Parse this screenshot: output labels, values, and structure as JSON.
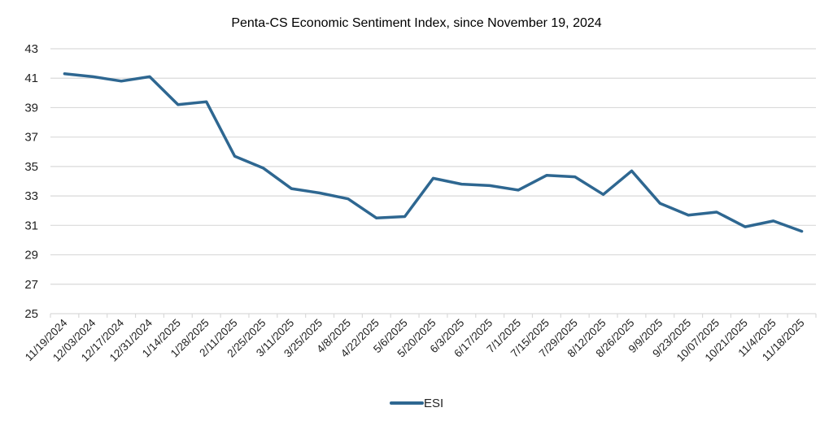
{
  "chart_data": {
    "type": "line",
    "title": "Penta-CS Economic Sentiment Index, since November 19, 2024",
    "xlabel": "",
    "ylabel": "",
    "ylim": [
      25,
      43
    ],
    "yticks": [
      "25",
      "27",
      "29",
      "31",
      "33",
      "35",
      "37",
      "39",
      "41",
      "43"
    ],
    "ytick_values": [
      25,
      27,
      29,
      31,
      33,
      35,
      37,
      39,
      41,
      43
    ],
    "grid": true,
    "legend_position": "bottom",
    "categories": [
      "11/19/2024",
      "12/03/2024",
      "12/17/2024",
      "12/31/2024",
      "1/14/2025",
      "1/28/2025",
      "2/11/2025",
      "2/25/2025",
      "3/11/2025",
      "3/25/2025",
      "4/8/2025",
      "4/22/2025",
      "5/6/2025",
      "5/20/2025",
      "6/3/2025",
      "6/17/2025",
      "7/1/2025",
      "7/15/2025",
      "7/29/2025",
      "8/12/2025",
      "8/26/2025",
      "9/9/2025",
      "9/23/2025",
      "10/07/2025",
      "10/21/2025",
      "11/4/2025",
      "11/18/2025"
    ],
    "series": [
      {
        "name": "ESI",
        "color": "#2e6791",
        "values": [
          41.3,
          41.1,
          40.8,
          41.1,
          39.2,
          39.4,
          35.7,
          34.9,
          33.5,
          33.2,
          32.8,
          31.5,
          31.6,
          34.2,
          33.8,
          33.7,
          33.4,
          34.4,
          34.3,
          33.1,
          34.7,
          32.5,
          31.7,
          31.9,
          30.9,
          31.3,
          30.6
        ]
      }
    ]
  }
}
